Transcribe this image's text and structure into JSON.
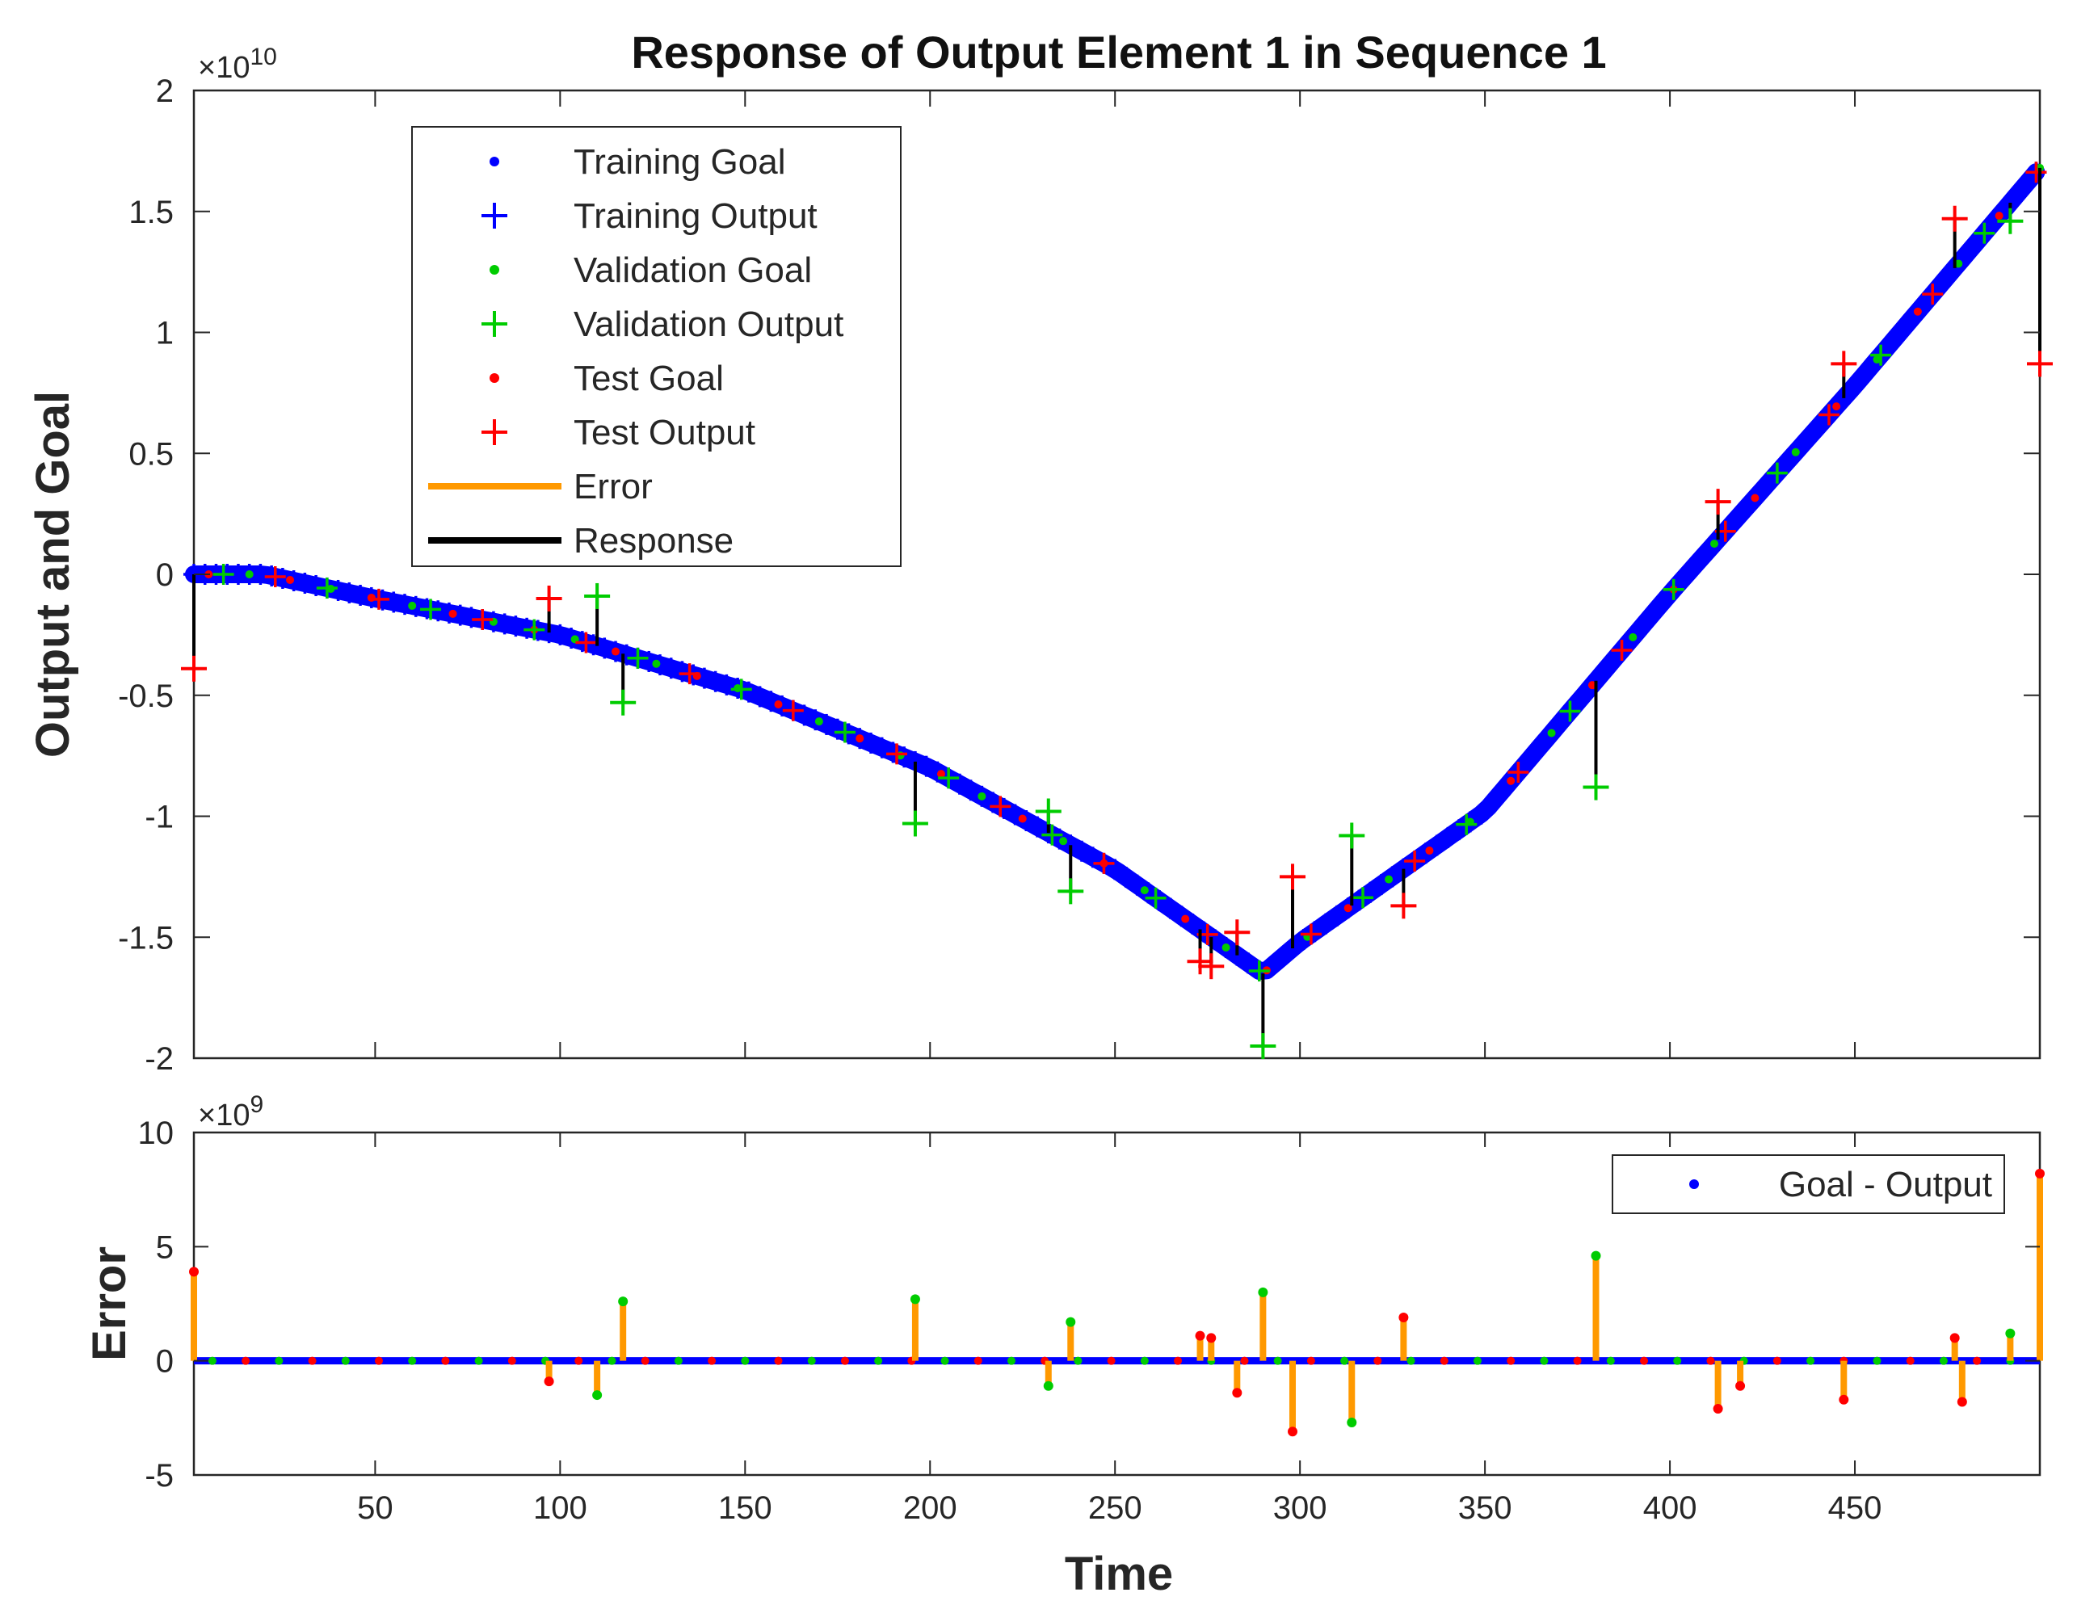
{
  "chart_data": [
    {
      "type": "scatter",
      "title": "Response of Output Element 1 in Sequence 1",
      "xlabel": "",
      "ylabel": "Output and Goal",
      "y_exponent_base": "×10",
      "y_exponent_power": "10",
      "xlim": [
        1,
        500
      ],
      "ylim": [
        -2,
        2
      ],
      "x_ticks": [
        50,
        100,
        150,
        200,
        250,
        300,
        350,
        400,
        450
      ],
      "y_ticks": [
        -2,
        -1.5,
        -1,
        -0.5,
        0,
        0.5,
        1,
        1.5,
        2
      ],
      "y_tick_labels": [
        "-2",
        "-1.5",
        "-1",
        "-0.5",
        "0",
        "0.5",
        "1",
        "1.5",
        "2"
      ],
      "legend_position": "top-left",
      "legend": [
        {
          "label": "Training Goal",
          "marker": "dot",
          "color": "#0000ff"
        },
        {
          "label": "Training Output",
          "marker": "plus",
          "color": "#0000ff"
        },
        {
          "label": "Validation Goal",
          "marker": "dot",
          "color": "#00cc00"
        },
        {
          "label": "Validation Output",
          "marker": "plus",
          "color": "#00cc00"
        },
        {
          "label": "Test Goal",
          "marker": "dot",
          "color": "#ff0000"
        },
        {
          "label": "Test Output",
          "marker": "plus",
          "color": "#ff0000"
        },
        {
          "label": "Error",
          "marker": "line",
          "color": "#ff9900"
        },
        {
          "label": "Response",
          "marker": "line",
          "color": "#000000"
        }
      ],
      "goal_curve": {
        "x": [
          1,
          20,
          50,
          100,
          150,
          200,
          250,
          290,
          300,
          350,
          400,
          450,
          500
        ],
        "y": [
          0.0,
          0.0,
          -0.1,
          -0.25,
          -0.48,
          -0.8,
          -1.22,
          -1.65,
          -1.52,
          -0.98,
          -0.08,
          0.78,
          1.68
        ]
      },
      "validation_outputs": {
        "x": [
          110,
          117,
          196,
          232,
          238,
          290,
          314,
          380,
          492
        ],
        "y": [
          -0.09,
          -0.53,
          -1.03,
          -0.98,
          -1.31,
          -1.95,
          -1.08,
          -0.88,
          1.46
        ]
      },
      "test_outputs": {
        "x": [
          1,
          97,
          273,
          276,
          283,
          298,
          328,
          413,
          447,
          477,
          500
        ],
        "y": [
          -0.39,
          -0.1,
          -1.6,
          -1.62,
          -1.48,
          -1.25,
          -1.37,
          0.3,
          0.87,
          1.47,
          0.87
        ]
      },
      "colors": {
        "training": "#0000ff",
        "validation": "#00cc00",
        "test": "#ff0000",
        "error": "#ff9900",
        "response": "#000000"
      }
    },
    {
      "type": "bar",
      "title": "",
      "xlabel": "Time",
      "ylabel": "Error",
      "y_exponent_base": "×10",
      "y_exponent_power": "9",
      "xlim": [
        1,
        500
      ],
      "ylim": [
        -5,
        10
      ],
      "x_ticks": [
        50,
        100,
        150,
        200,
        250,
        300,
        350,
        400,
        450
      ],
      "x_tick_labels": [
        "50",
        "100",
        "150",
        "200",
        "250",
        "300",
        "350",
        "400",
        "450"
      ],
      "y_ticks": [
        -5,
        0,
        5,
        10
      ],
      "y_tick_labels": [
        "-5",
        "0",
        "5",
        "10"
      ],
      "legend_position": "top-right",
      "legend": [
        {
          "label": "Goal - Output",
          "marker": "dot",
          "color": "#0000ff"
        }
      ],
      "errors": {
        "x": [
          1,
          97,
          110,
          117,
          196,
          232,
          238,
          273,
          276,
          283,
          290,
          298,
          314,
          328,
          380,
          413,
          419,
          447,
          477,
          479,
          492,
          500
        ],
        "y": [
          3.9,
          -0.9,
          -1.5,
          2.6,
          2.7,
          -1.1,
          1.7,
          1.1,
          1.0,
          -1.4,
          3.0,
          -3.1,
          -2.7,
          1.9,
          4.6,
          -2.1,
          -1.1,
          -1.7,
          1.0,
          -1.8,
          1.2,
          8.2
        ],
        "set": [
          "test",
          "test",
          "validation",
          "validation",
          "validation",
          "validation",
          "validation",
          "test",
          "test",
          "test",
          "validation",
          "test",
          "validation",
          "test",
          "validation",
          "test",
          "test",
          "test",
          "test",
          "test",
          "validation",
          "test"
        ]
      }
    }
  ]
}
